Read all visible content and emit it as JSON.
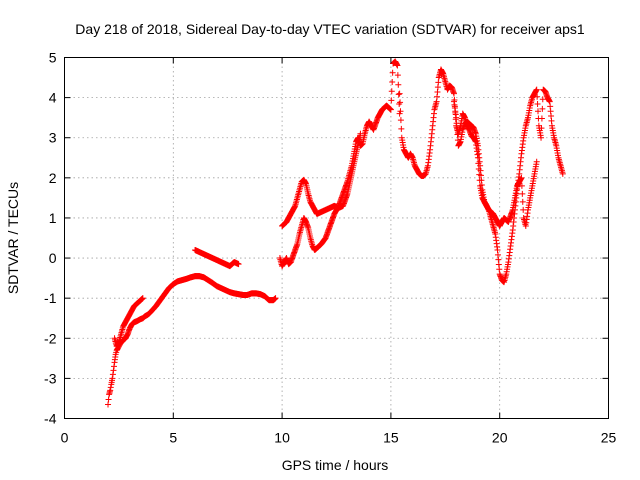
{
  "chart_data": {
    "type": "scatter",
    "title": "Day 218 of 2018, Sidereal Day-to-day VTEC variation (SDTVAR) for receiver aps1",
    "xlabel": "GPS time / hours",
    "ylabel": "SDTVAR / TECUs",
    "xlim": [
      0,
      25
    ],
    "ylim": [
      -4,
      5
    ],
    "xticks": [
      0,
      5,
      10,
      15,
      20,
      25
    ],
    "yticks": [
      -4,
      -3,
      -2,
      -1,
      0,
      1,
      2,
      3,
      4,
      5
    ],
    "grid": true,
    "marker": "plus",
    "color": "#ff0000",
    "series": [
      {
        "name": "",
        "x": [
          2.0,
          2.05,
          2.1,
          2.15,
          2.2,
          2.25,
          2.3,
          2.35,
          2.4,
          2.45,
          2.5,
          2.55,
          2.6,
          2.7,
          2.8,
          2.9,
          3.0,
          3.1,
          3.2,
          3.3,
          3.4,
          3.5,
          3.6,
          3.7,
          3.8,
          3.9,
          4.0,
          4.2,
          4.4,
          4.6,
          4.8,
          5.0,
          5.2,
          5.4,
          5.6,
          5.8,
          6.0,
          6.2,
          6.4,
          6.6,
          6.8,
          7.0,
          7.2,
          7.4,
          7.6,
          7.8,
          8.0,
          8.2,
          8.4,
          8.6,
          8.8,
          9.0,
          9.2,
          9.4,
          9.6,
          9.7
        ],
        "y": [
          -3.65,
          -3.4,
          -3.3,
          -3.15,
          -3.0,
          -2.8,
          -2.6,
          -2.4,
          -2.3,
          -2.25,
          -2.2,
          -2.15,
          -2.1,
          -2.05,
          -2.0,
          -1.9,
          -1.75,
          -1.65,
          -1.6,
          -1.58,
          -1.55,
          -1.52,
          -1.5,
          -1.45,
          -1.42,
          -1.38,
          -1.32,
          -1.2,
          -1.05,
          -0.9,
          -0.75,
          -0.65,
          -0.58,
          -0.55,
          -0.52,
          -0.48,
          -0.45,
          -0.45,
          -0.48,
          -0.55,
          -0.62,
          -0.7,
          -0.75,
          -0.8,
          -0.85,
          -0.88,
          -0.9,
          -0.92,
          -0.92,
          -0.88,
          -0.88,
          -0.9,
          -0.95,
          -1.05,
          -1.05,
          -1.0
        ]
      },
      {
        "name": "",
        "x": [
          2.3,
          2.4,
          2.5,
          2.6,
          2.7,
          2.8,
          2.9,
          3.0,
          3.1,
          3.2,
          3.3,
          3.4,
          3.5,
          3.6,
          6.0,
          6.2,
          6.4,
          6.6,
          6.8,
          7.0,
          7.2,
          7.4,
          7.6,
          7.8,
          8.0
        ],
        "y": [
          -2.0,
          -2.2,
          -2.1,
          -1.9,
          -1.7,
          -1.6,
          -1.5,
          -1.4,
          -1.3,
          -1.2,
          -1.15,
          -1.1,
          -1.05,
          -1.0,
          0.2,
          0.15,
          0.1,
          0.05,
          0.0,
          -0.05,
          -0.1,
          -0.15,
          -0.2,
          -0.1,
          -0.15
        ]
      },
      {
        "name": "",
        "x": [
          9.9,
          10.0,
          10.1,
          10.2,
          10.3,
          10.4,
          10.5,
          10.6,
          10.7,
          10.8,
          10.9,
          11.0,
          11.1,
          11.2,
          11.3,
          11.4,
          11.5,
          11.6,
          11.8,
          12.0,
          12.2,
          12.4,
          12.6,
          12.8,
          13.0,
          13.1,
          13.2,
          13.3,
          13.4,
          13.5,
          13.6,
          13.7,
          13.8,
          13.9,
          14.0,
          14.2,
          14.4,
          14.6,
          14.8,
          15.0,
          15.1,
          15.2,
          15.3,
          15.4
        ],
        "y": [
          0.0,
          -0.2,
          -0.1,
          0.0,
          -0.15,
          -0.1,
          0.05,
          0.2,
          0.35,
          0.6,
          0.8,
          1.0,
          0.9,
          0.75,
          0.5,
          0.3,
          0.2,
          0.25,
          0.35,
          0.5,
          0.8,
          1.1,
          1.3,
          1.6,
          1.9,
          2.1,
          2.3,
          2.6,
          2.9,
          3.0,
          2.8,
          2.85,
          3.1,
          3.3,
          3.4,
          3.2,
          3.5,
          3.7,
          3.8,
          3.7,
          4.85,
          4.9,
          4.8,
          3.6
        ]
      },
      {
        "name": "",
        "x": [
          10.0,
          10.1,
          10.2,
          10.3,
          10.4,
          10.5,
          10.6,
          10.7,
          10.8,
          10.9,
          11.0,
          11.1,
          11.2,
          11.3,
          11.4,
          11.5,
          11.6,
          11.8,
          12.0,
          12.2,
          12.4,
          12.6,
          12.8,
          13.0,
          13.2,
          13.4,
          13.6
        ],
        "y": [
          0.8,
          0.85,
          0.9,
          1.0,
          1.1,
          1.2,
          1.3,
          1.5,
          1.7,
          1.9,
          1.95,
          1.85,
          1.6,
          1.4,
          1.3,
          1.2,
          1.1,
          1.15,
          1.2,
          1.25,
          1.3,
          1.25,
          1.3,
          1.6,
          2.1,
          2.6,
          3.1
        ]
      },
      {
        "name": "",
        "x": [
          15.4,
          15.5,
          15.6,
          15.7,
          15.8,
          15.9,
          16.0,
          16.1,
          16.2,
          16.3,
          16.4,
          16.5,
          16.6,
          16.7,
          16.8,
          16.9,
          17.0,
          17.1,
          17.2,
          17.3,
          17.4,
          17.5,
          17.6,
          17.7,
          17.8,
          17.9,
          18.0,
          18.1,
          18.2,
          18.3,
          18.4,
          18.5,
          18.6,
          18.7,
          18.8,
          18.9,
          19.0,
          19.1,
          19.2,
          19.3,
          19.4,
          19.5,
          19.6,
          19.7,
          19.8,
          19.9,
          20.0,
          20.1,
          20.2,
          20.3,
          20.4,
          20.5,
          20.6,
          20.7,
          20.8,
          20.9,
          21.0,
          21.1,
          21.2,
          21.3,
          21.4,
          21.5,
          21.6,
          21.7,
          21.8,
          21.9,
          22.0,
          22.1,
          22.2,
          22.3,
          22.4,
          22.5,
          22.6,
          22.7,
          22.8,
          22.9
        ],
        "y": [
          4.1,
          3.0,
          2.7,
          2.6,
          2.5,
          2.6,
          2.5,
          2.3,
          2.2,
          2.1,
          2.05,
          2.05,
          2.1,
          2.3,
          2.7,
          3.2,
          3.7,
          3.9,
          4.5,
          4.7,
          4.6,
          4.4,
          4.2,
          4.3,
          4.25,
          4.1,
          3.3,
          3.1,
          3.3,
          3.6,
          3.5,
          3.3,
          3.2,
          3.05,
          3.0,
          2.9,
          2.5,
          1.8,
          1.5,
          1.4,
          1.3,
          1.2,
          1.0,
          0.8,
          0.6,
          0.2,
          -0.4,
          -0.55,
          -0.6,
          -0.4,
          -0.1,
          0.3,
          0.7,
          1.2,
          1.7,
          2.1,
          2.6,
          3.0,
          3.3,
          3.5,
          3.8,
          4.0,
          4.1,
          4.2,
          3.3,
          3.0,
          4.2,
          4.15,
          4.0,
          3.9,
          3.3,
          3.0,
          2.8,
          2.5,
          2.3,
          2.1
        ]
      },
      {
        "name": "",
        "x": [
          17.9,
          18.0,
          18.1,
          18.2,
          18.3,
          18.4,
          18.5,
          18.6,
          18.7,
          18.8,
          18.9,
          19.0,
          19.1,
          19.2,
          19.3,
          19.4,
          19.5,
          19.6,
          19.7,
          19.8,
          20.0,
          20.2,
          20.4,
          20.6,
          20.8,
          21.0,
          21.1,
          21.2,
          21.3,
          21.4,
          21.5,
          21.6,
          21.7
        ],
        "y": [
          3.9,
          3.5,
          2.8,
          2.9,
          3.2,
          3.35,
          3.4,
          3.35,
          3.3,
          3.25,
          3.1,
          2.8,
          2.3,
          1.7,
          1.4,
          1.3,
          1.2,
          1.15,
          1.1,
          1.0,
          0.8,
          1.0,
          0.9,
          1.2,
          1.8,
          2.0,
          1.0,
          0.8,
          1.2,
          1.5,
          1.8,
          2.1,
          2.4
        ]
      }
    ]
  }
}
